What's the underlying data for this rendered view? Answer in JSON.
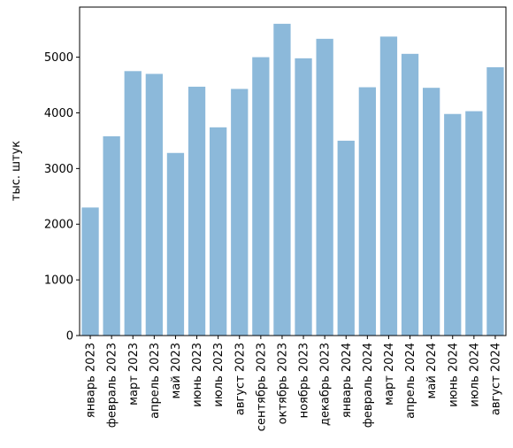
{
  "chart_data": {
    "type": "bar",
    "title": "",
    "xlabel": "",
    "ylabel": "тыс. штук",
    "categories": [
      "январь 2023",
      "февраль 2023",
      "март 2023",
      "апрель 2023",
      "май 2023",
      "июнь 2023",
      "июль 2023",
      "август 2023",
      "сентябрь 2023",
      "октябрь 2023",
      "ноябрь 2023",
      "декабрь 2023",
      "январь 2024",
      "февраль 2024",
      "март 2024",
      "апрель 2024",
      "май 2024",
      "июнь 2024",
      "июль 2024",
      "август 2024"
    ],
    "values": [
      2300,
      3580,
      4750,
      4700,
      3280,
      4470,
      3740,
      4430,
      5000,
      5600,
      4980,
      5330,
      3500,
      4460,
      5370,
      5060,
      4450,
      3980,
      4030,
      4820
    ],
    "yticks": [
      0,
      1000,
      2000,
      3000,
      4000,
      5000
    ],
    "ylim": [
      0,
      5900
    ],
    "grid": false,
    "bar_color": "#8cb9da"
  }
}
